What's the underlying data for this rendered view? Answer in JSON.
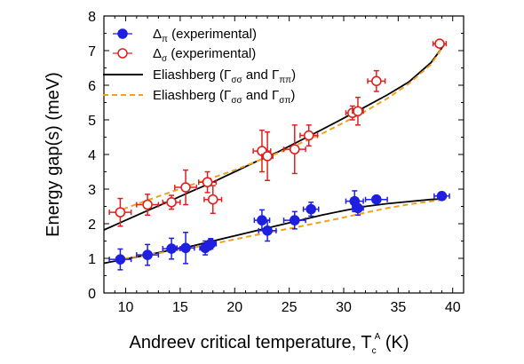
{
  "chart_data": {
    "type": "scatter",
    "xlabel": "Andreev critical temperature, T",
    "xlabel_sub": "c",
    "xlabel_sup": "A",
    "xlabel_unit": " (K)",
    "ylabel": "Energy gap(s) (meV)",
    "xlim": [
      8,
      41
    ],
    "ylim": [
      0,
      8
    ],
    "xticks": [
      10,
      15,
      20,
      25,
      30,
      35,
      40
    ],
    "yticks": [
      0,
      1,
      2,
      3,
      4,
      5,
      6,
      7,
      8
    ],
    "legend_position": "top-left",
    "series": [
      {
        "name": "Δ",
        "name_sub": "π",
        "name_tail": " (experimental)",
        "kind": "points",
        "color": "#1f1fe0",
        "filled": true,
        "points": [
          {
            "x": 9.5,
            "y": 0.97,
            "xerr": 1.0,
            "yerr": 0.3
          },
          {
            "x": 12.0,
            "y": 1.1,
            "xerr": 1.0,
            "yerr": 0.3
          },
          {
            "x": 14.2,
            "y": 1.28,
            "xerr": 0.8,
            "yerr": 0.3
          },
          {
            "x": 15.5,
            "y": 1.3,
            "xerr": 0.8,
            "yerr": 0.45
          },
          {
            "x": 17.3,
            "y": 1.3,
            "xerr": 0.5,
            "yerr": 0.2
          },
          {
            "x": 17.8,
            "y": 1.42,
            "xerr": 0.5,
            "yerr": 0.15
          },
          {
            "x": 22.5,
            "y": 2.1,
            "xerr": 0.7,
            "yerr": 0.3
          },
          {
            "x": 23.0,
            "y": 1.8,
            "xerr": 0.8,
            "yerr": 0.3
          },
          {
            "x": 25.5,
            "y": 2.1,
            "xerr": 1.0,
            "yerr": 0.25
          },
          {
            "x": 27.0,
            "y": 2.42,
            "xerr": 0.7,
            "yerr": 0.2
          },
          {
            "x": 31.0,
            "y": 2.65,
            "xerr": 0.8,
            "yerr": 0.3
          },
          {
            "x": 31.3,
            "y": 2.45,
            "xerr": 0.5,
            "yerr": 0.2
          },
          {
            "x": 33.0,
            "y": 2.7,
            "xerr": 1.0,
            "yerr": 0.1
          },
          {
            "x": 39.0,
            "y": 2.8,
            "xerr": 0.7,
            "yerr": 0.1
          }
        ]
      },
      {
        "name": "Δ",
        "name_sub": "σ",
        "name_tail": " (experimental)",
        "kind": "points",
        "color": "#e02020",
        "filled": false,
        "points": [
          {
            "x": 9.5,
            "y": 2.33,
            "xerr": 1.0,
            "yerr": 0.4
          },
          {
            "x": 12.0,
            "y": 2.55,
            "xerr": 1.0,
            "yerr": 0.3
          },
          {
            "x": 14.2,
            "y": 2.62,
            "xerr": 0.8,
            "yerr": 0.2
          },
          {
            "x": 15.5,
            "y": 3.05,
            "xerr": 1.0,
            "yerr": 0.5
          },
          {
            "x": 17.5,
            "y": 3.2,
            "xerr": 0.8,
            "yerr": 0.3
          },
          {
            "x": 18.0,
            "y": 2.7,
            "xerr": 0.8,
            "yerr": 0.4
          },
          {
            "x": 22.5,
            "y": 4.1,
            "xerr": 0.8,
            "yerr": 0.6
          },
          {
            "x": 23.0,
            "y": 3.95,
            "xerr": 0.5,
            "yerr": 0.7
          },
          {
            "x": 25.5,
            "y": 4.15,
            "xerr": 1.0,
            "yerr": 0.7
          },
          {
            "x": 26.8,
            "y": 4.55,
            "xerr": 0.8,
            "yerr": 0.3
          },
          {
            "x": 30.8,
            "y": 5.2,
            "xerr": 0.6,
            "yerr": 0.2
          },
          {
            "x": 31.3,
            "y": 5.25,
            "xerr": 0.5,
            "yerr": 0.4
          },
          {
            "x": 33.0,
            "y": 6.12,
            "xerr": 0.8,
            "yerr": 0.3
          },
          {
            "x": 38.8,
            "y": 7.2,
            "xerr": 0.6,
            "yerr": 0.1
          }
        ]
      },
      {
        "name": "Eliashberg (Γ",
        "name_sub": "σσ",
        "name_mid": " and Γ",
        "name_sub2": "ππ",
        "name_tail": ")",
        "kind": "line",
        "color": "#000000",
        "dashed": false,
        "branches": [
          [
            [
              8.0,
              1.82
            ],
            [
              10.0,
              2.1
            ],
            [
              12.0,
              2.38
            ],
            [
              14.0,
              2.65
            ],
            [
              16.0,
              2.93
            ],
            [
              18.0,
              3.2
            ],
            [
              20.0,
              3.5
            ],
            [
              22.0,
              3.8
            ],
            [
              24.0,
              4.08
            ],
            [
              26.0,
              4.4
            ],
            [
              28.0,
              4.72
            ],
            [
              30.0,
              5.05
            ],
            [
              32.0,
              5.38
            ],
            [
              34.0,
              5.72
            ],
            [
              36.0,
              6.1
            ],
            [
              38.0,
              6.65
            ],
            [
              39.3,
              7.2
            ]
          ],
          [
            [
              8.0,
              0.86
            ],
            [
              10.0,
              0.98
            ],
            [
              12.0,
              1.1
            ],
            [
              14.0,
              1.23
            ],
            [
              16.0,
              1.35
            ],
            [
              18.0,
              1.5
            ],
            [
              20.0,
              1.65
            ],
            [
              22.0,
              1.8
            ],
            [
              24.0,
              1.95
            ],
            [
              26.0,
              2.1
            ],
            [
              28.0,
              2.25
            ],
            [
              30.0,
              2.38
            ],
            [
              32.0,
              2.5
            ],
            [
              34.0,
              2.58
            ],
            [
              36.0,
              2.64
            ],
            [
              38.0,
              2.7
            ],
            [
              39.3,
              2.72
            ]
          ]
        ]
      },
      {
        "name": "Eliashberg (Γ",
        "name_sub": "σσ",
        "name_mid": " and Γ",
        "name_sub2": "σπ",
        "name_tail": ")",
        "kind": "line",
        "color": "#f0a020",
        "dashed": true,
        "branches": [
          [
            [
              9.0,
              2.3
            ],
            [
              10.0,
              2.45
            ],
            [
              12.0,
              2.68
            ],
            [
              14.0,
              2.9
            ],
            [
              16.0,
              3.12
            ],
            [
              18.0,
              3.33
            ],
            [
              20.0,
              3.55
            ],
            [
              22.0,
              3.8
            ],
            [
              24.0,
              4.05
            ],
            [
              26.0,
              4.32
            ],
            [
              28.0,
              4.6
            ],
            [
              30.0,
              4.92
            ],
            [
              32.0,
              5.25
            ],
            [
              34.0,
              5.62
            ],
            [
              36.0,
              6.05
            ],
            [
              38.0,
              6.6
            ],
            [
              39.3,
              7.2
            ]
          ],
          [
            [
              9.0,
              0.95
            ],
            [
              10.0,
              1.0
            ],
            [
              12.0,
              1.1
            ],
            [
              14.0,
              1.2
            ],
            [
              16.0,
              1.3
            ],
            [
              18.0,
              1.42
            ],
            [
              20.0,
              1.55
            ],
            [
              22.0,
              1.68
            ],
            [
              24.0,
              1.8
            ],
            [
              26.0,
              1.92
            ],
            [
              28.0,
              2.05
            ],
            [
              30.0,
              2.18
            ],
            [
              32.0,
              2.32
            ],
            [
              34.0,
              2.45
            ],
            [
              36.0,
              2.56
            ],
            [
              38.0,
              2.65
            ],
            [
              39.3,
              2.7
            ]
          ]
        ]
      }
    ]
  }
}
